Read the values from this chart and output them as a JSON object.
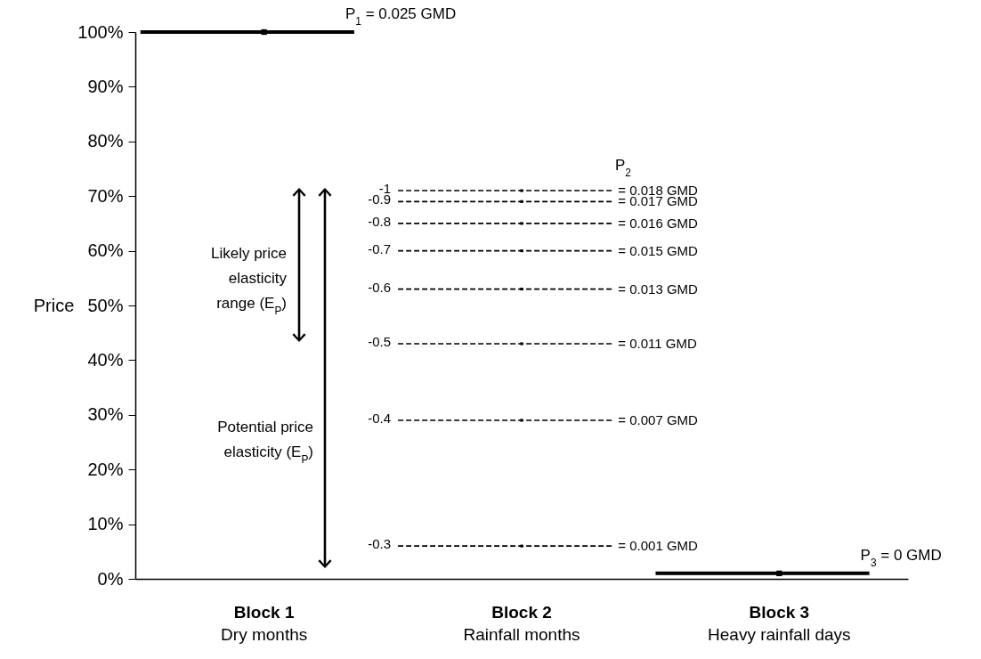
{
  "chart_data": {
    "type": "line",
    "ylabel": "Price",
    "grid": false,
    "legend": false,
    "marker": "square",
    "categories": [
      "Block 1\nDry months",
      "Block 2\nRainfall months",
      "Block 3\nHeavy rainfall days"
    ],
    "ylim": [
      0,
      100
    ],
    "yticks": [
      {
        "value": 0,
        "label": "0%"
      },
      {
        "value": 10,
        "label": "10%"
      },
      {
        "value": 20,
        "label": "20%"
      },
      {
        "value": 30,
        "label": "30%"
      },
      {
        "value": 40,
        "label": "40%"
      },
      {
        "value": 50,
        "label": "50%"
      },
      {
        "value": 60,
        "label": "60%"
      },
      {
        "value": 70,
        "label": "70%"
      },
      {
        "value": 80,
        "label": "80%"
      },
      {
        "value": 90,
        "label": "90%"
      },
      {
        "value": 100,
        "label": "100%"
      }
    ],
    "series": [
      {
        "color": "#000000",
        "line_style": "solid",
        "values": [
          100,
          null,
          null
        ]
      },
      {
        "color": "#000000",
        "line_style": "dashed",
        "values": [
          null,
          71,
          null
        ]
      },
      {
        "color": "#000000",
        "line_style": "dashed",
        "values": [
          null,
          69,
          null
        ]
      },
      {
        "color": "#000000",
        "line_style": "dashed",
        "values": [
          null,
          65,
          null
        ]
      },
      {
        "color": "#000000",
        "line_style": "dashed",
        "values": [
          null,
          60,
          null
        ]
      },
      {
        "color": "#000000",
        "line_style": "dashed",
        "values": [
          null,
          53,
          null
        ]
      },
      {
        "color": "#000000",
        "line_style": "dashed",
        "values": [
          null,
          43,
          null
        ]
      },
      {
        "color": "#000000",
        "line_style": "dashed",
        "values": [
          null,
          29,
          null
        ]
      },
      {
        "color": "#000000",
        "line_style": "dashed",
        "values": [
          null,
          6,
          null
        ]
      },
      {
        "color": "#000000",
        "line_style": "solid",
        "values": [
          null,
          null,
          1
        ]
      }
    ],
    "annotations": [
      "P$_{1}$ = 0.025 GMD",
      "P$_{2}$",
      "= 0.018 GMD",
      "= 0.017 GMD",
      "= 0.016 GMD",
      "= 0.015 GMD",
      "= 0.013 GMD",
      "= 0.011 GMD",
      "= 0.007 GMD",
      "= 0.001 GMD",
      "-1",
      "-0.9",
      "-0.8",
      "-0.7",
      "-0.6",
      "-0.5",
      "-0.4",
      "-0.3",
      "P$_{3}$ = 0 GMD",
      "Likely price elasticity range (E$_{P}$)",
      "Potential price elasticity (E$_{P}$)"
    ]
  }
}
